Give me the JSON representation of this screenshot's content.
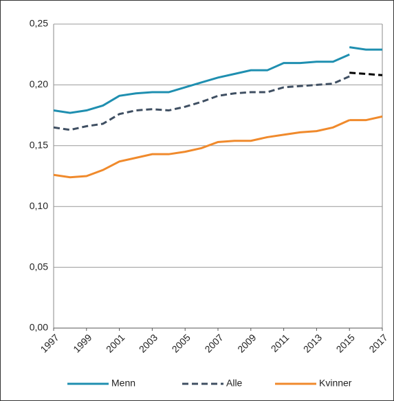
{
  "chart_data": {
    "type": "line",
    "x": [
      1997,
      1998,
      1999,
      2000,
      2001,
      2002,
      2003,
      2004,
      2005,
      2006,
      2007,
      2008,
      2009,
      2010,
      2011,
      2012,
      2013,
      2014,
      2015,
      null,
      2015,
      2016,
      2017
    ],
    "xlim": [
      1997,
      2017
    ],
    "xticks": [
      1997,
      1999,
      2001,
      2003,
      2005,
      2007,
      2009,
      2011,
      2013,
      2015,
      2017
    ],
    "ylim": [
      0,
      0.25
    ],
    "yticks": [
      {
        "value": 0,
        "label": "0,00"
      },
      {
        "value": 0.05,
        "label": "0,05"
      },
      {
        "value": 0.1,
        "label": "0,10"
      },
      {
        "value": 0.15,
        "label": "0,15"
      },
      {
        "value": 0.2,
        "label": "0,20"
      },
      {
        "value": 0.25,
        "label": "0,25"
      }
    ],
    "grid": true,
    "legend": "bottom",
    "series": [
      {
        "name": "Menn",
        "color": "#1f8fb0",
        "dashed": false,
        "values": [
          0.179,
          0.177,
          0.179,
          0.183,
          0.191,
          0.193,
          0.194,
          0.194,
          0.198,
          0.202,
          0.206,
          0.209,
          0.212,
          0.212,
          0.218,
          0.218,
          0.219,
          0.219,
          0.225,
          null,
          0.231,
          0.229,
          0.229
        ]
      },
      {
        "name": "Alle",
        "color": "#3f4f62",
        "break_color": "#000000",
        "dashed": true,
        "values": [
          0.165,
          0.163,
          0.166,
          0.168,
          0.176,
          0.179,
          0.18,
          0.179,
          0.182,
          0.186,
          0.191,
          0.193,
          0.194,
          0.194,
          0.198,
          0.199,
          0.2,
          0.201,
          0.207,
          null,
          0.21,
          0.209,
          0.208
        ]
      },
      {
        "name": "Kvinner",
        "color": "#f08a2c",
        "dashed": false,
        "values": [
          0.126,
          0.124,
          0.125,
          0.13,
          0.137,
          0.14,
          0.143,
          0.143,
          0.145,
          0.148,
          0.153,
          0.154,
          0.154,
          0.157,
          0.159,
          0.161,
          0.162,
          0.165,
          0.171,
          null,
          0.171,
          0.171,
          0.174
        ]
      }
    ]
  }
}
